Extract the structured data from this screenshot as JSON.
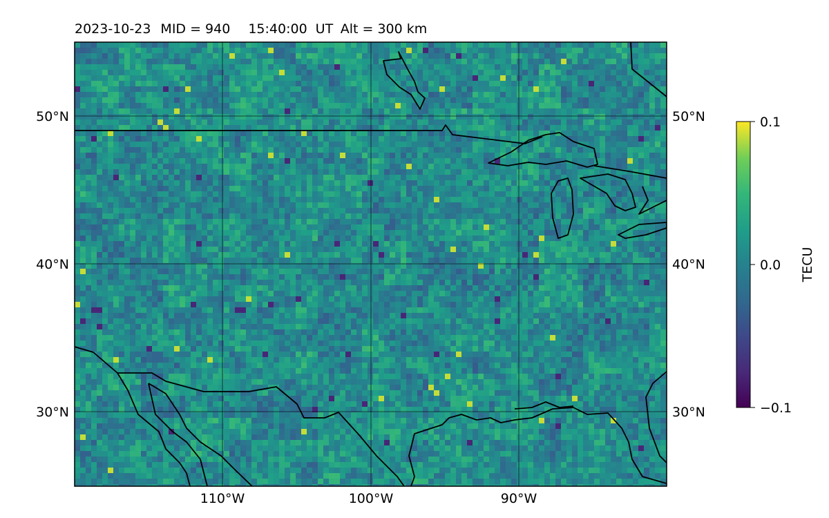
{
  "title": {
    "date": "2023-10-23",
    "mid": "MID = 940",
    "time": "15:40:00",
    "ut": "UT",
    "alt": "Alt = 300 km"
  },
  "axes": {
    "lat_labels_left": [
      "50°N",
      "40°N",
      "30°N"
    ],
    "lat_labels_right": [
      "50°N",
      "40°N",
      "30°N"
    ],
    "lon_labels": [
      "110°W",
      "100°W",
      "90°W"
    ]
  },
  "colorbar": {
    "label": "TECU",
    "ticks": [
      "0.1",
      "0.0",
      "−0.1"
    ],
    "vmin": -0.1,
    "vmax": 0.1,
    "colormap": "viridis",
    "colors": [
      "#440154",
      "#3b528b",
      "#21918c",
      "#5ec962",
      "#fde725"
    ]
  },
  "chart_data": {
    "type": "heatmap",
    "title": "2023-10-23  MID = 940    15:40:00  UT  Alt = 300 km",
    "colorbar_label": "TECU",
    "vmin": -0.1,
    "vmax": 0.1,
    "lat_range": [
      25,
      55
    ],
    "lon_range": [
      -120,
      -80
    ],
    "lat_ticks": [
      30,
      40,
      50
    ],
    "lon_ticks": [
      -110,
      -100,
      -90
    ],
    "grid": true
  }
}
